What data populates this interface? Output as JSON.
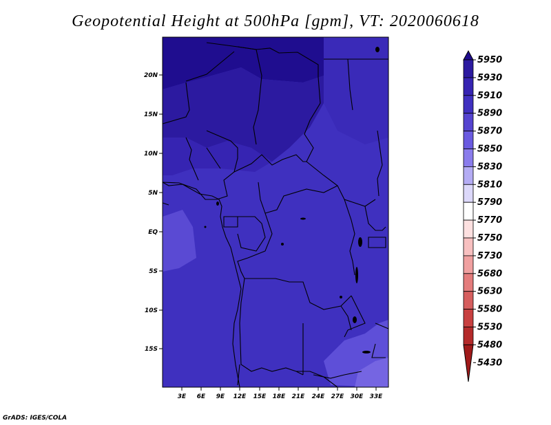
{
  "title": "Geopotential Height at 500hPa [gpm], VT: 2020060618",
  "credit": "GrADS: IGES/COLA",
  "map": {
    "lat_ticks": [
      "20N",
      "15N",
      "10N",
      "5N",
      "EQ",
      "5S",
      "10S",
      "15S"
    ],
    "lon_ticks": [
      "3E",
      "6E",
      "9E",
      "12E",
      "15E",
      "18E",
      "21E",
      "24E",
      "27E",
      "30E",
      "33E"
    ]
  },
  "colorbar": {
    "labels": [
      "5950",
      "5930",
      "5910",
      "5890",
      "5870",
      "5850",
      "5830",
      "5810",
      "5790",
      "5770",
      "5750",
      "5730",
      "5680",
      "5630",
      "5580",
      "5530",
      "5480",
      "5430"
    ],
    "colors": [
      "#1e0b8c",
      "#2c1aa0",
      "#3624b2",
      "#4030c0",
      "#5544d0",
      "#6a5ae0",
      "#8a7cec",
      "#b4acf4",
      "#dcd8fa",
      "#ffffff",
      "#fde0e0",
      "#f8c0c0",
      "#f0a0a0",
      "#e47c7c",
      "#d65e5e",
      "#c84040",
      "#b42a2a",
      "#a01a1a"
    ]
  }
}
